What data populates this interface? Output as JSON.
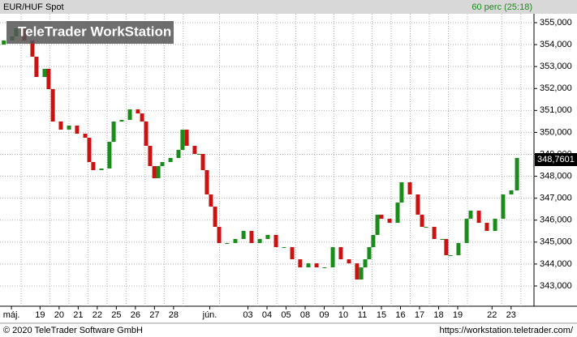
{
  "chart_data": {
    "type": "candlestick",
    "title": "EUR/HUF Spot",
    "interval": "60 perc (25:18)",
    "watermark": "TeleTrader WorkStation",
    "last_price": {
      "value": 348.7601,
      "label": "348,7601"
    },
    "footer_left": "© 2020 TeleTrader Software GmbH",
    "footer_right": "https://workstation.teletrader.com/",
    "up_color": "#1a8c1a",
    "down_color": "#cc1111",
    "grid": true,
    "xlim": [
      0,
      28
    ],
    "ylim": [
      342.077,
      355.406
    ],
    "yticks": [
      {
        "value": 343,
        "label": "343,000"
      },
      {
        "value": 344,
        "label": "344,000"
      },
      {
        "value": 345,
        "label": "345,000"
      },
      {
        "value": 346,
        "label": "346,000"
      },
      {
        "value": 347,
        "label": "347,000"
      },
      {
        "value": 348,
        "label": "348,000"
      },
      {
        "value": 349,
        "label": "349,000"
      },
      {
        "value": 350,
        "label": "350,000"
      },
      {
        "value": 351,
        "label": "351,000"
      },
      {
        "value": 352,
        "label": "352,000"
      },
      {
        "value": 353,
        "label": "353,000"
      },
      {
        "value": 354,
        "label": "354,000"
      },
      {
        "value": 355,
        "label": "355,000"
      }
    ],
    "xticks": [
      {
        "value": 0.6,
        "label": "máj."
      },
      {
        "value": 2.1,
        "label": "19"
      },
      {
        "value": 3.1,
        "label": "20"
      },
      {
        "value": 4.1,
        "label": "21"
      },
      {
        "value": 5.1,
        "label": "22"
      },
      {
        "value": 6.1,
        "label": "25"
      },
      {
        "value": 7.1,
        "label": "26"
      },
      {
        "value": 8.1,
        "label": "27"
      },
      {
        "value": 9.1,
        "label": "28"
      },
      {
        "value": 11.0,
        "label": "jún."
      },
      {
        "value": 13.0,
        "label": "03"
      },
      {
        "value": 14.0,
        "label": "04"
      },
      {
        "value": 15.0,
        "label": "05"
      },
      {
        "value": 16.0,
        "label": "08"
      },
      {
        "value": 17.0,
        "label": "09"
      },
      {
        "value": 18.0,
        "label": "10"
      },
      {
        "value": 19.0,
        "label": "11"
      },
      {
        "value": 20.0,
        "label": "15"
      },
      {
        "value": 21.0,
        "label": "16"
      },
      {
        "value": 22.0,
        "label": "17"
      },
      {
        "value": 23.0,
        "label": "18"
      },
      {
        "value": 24.0,
        "label": "19"
      },
      {
        "value": 25.8,
        "label": "22"
      },
      {
        "value": 26.8,
        "label": "23"
      }
    ],
    "x": [
      0.2,
      0.64,
      0.85,
      1.28,
      1.7,
      1.91,
      2.34,
      2.55,
      2.77,
      3.19,
      3.62,
      4.04,
      4.47,
      4.68,
      4.89,
      5.32,
      5.74,
      5.96,
      6.38,
      6.81,
      7.23,
      7.45,
      7.66,
      7.87,
      8.09,
      8.3,
      8.51,
      8.94,
      9.36,
      9.57,
      9.79,
      10.21,
      10.43,
      10.64,
      10.85,
      11.06,
      11.28,
      11.49,
      11.91,
      12.34,
      12.77,
      13.19,
      13.62,
      14.04,
      14.47,
      14.89,
      15.32,
      15.74,
      16.17,
      16.6,
      17.02,
      17.45,
      17.87,
      18.3,
      18.72,
      18.94,
      19.15,
      19.36,
      19.57,
      19.79,
      20.0,
      20.43,
      20.85,
      21.06,
      21.49,
      21.91,
      22.13,
      22.34,
      22.77,
      23.19,
      23.4,
      23.62,
      24.04,
      24.47,
      24.68,
      25.11,
      25.53,
      25.96,
      26.38,
      26.81,
      27.11
    ],
    "open": [
      354.0,
      354.188,
      354.372,
      354.741,
      354.188,
      353.449,
      352.526,
      352.895,
      351.972,
      350.495,
      350.125,
      350.31,
      349.941,
      349.756,
      348.648,
      348.279,
      348.353,
      349.571,
      350.495,
      350.568,
      351.048,
      350.864,
      350.495,
      349.387,
      348.463,
      347.91,
      348.463,
      348.648,
      348.833,
      349.202,
      350.125,
      349.387,
      349.017,
      349.017,
      348.279,
      347.171,
      346.617,
      345.694,
      344.955,
      344.955,
      345.14,
      345.509,
      344.955,
      345.14,
      345.325,
      344.77,
      344.77,
      344.216,
      343.847,
      344.032,
      343.847,
      343.847,
      344.77,
      344.216,
      344.032,
      343.293,
      343.847,
      344.216,
      344.77,
      345.325,
      346.248,
      346.063,
      345.879,
      346.802,
      347.725,
      347.171,
      346.248,
      345.694,
      345.694,
      345.14,
      345.14,
      344.401,
      344.401,
      344.955,
      346.063,
      346.432,
      345.879,
      345.509,
      346.063,
      347.171,
      347.356
    ],
    "close": [
      354.188,
      354.372,
      354.741,
      354.188,
      353.449,
      352.526,
      352.895,
      351.972,
      350.495,
      350.125,
      350.31,
      349.941,
      349.756,
      348.648,
      348.279,
      348.353,
      349.571,
      350.495,
      350.568,
      351.048,
      350.864,
      350.495,
      349.387,
      348.463,
      347.91,
      348.463,
      348.648,
      348.833,
      349.202,
      350.125,
      349.387,
      349.017,
      349.017,
      348.279,
      347.171,
      346.617,
      345.694,
      344.955,
      344.955,
      345.14,
      345.509,
      344.955,
      345.14,
      345.325,
      344.77,
      344.77,
      344.216,
      343.847,
      344.032,
      343.847,
      343.847,
      344.77,
      344.216,
      344.032,
      343.293,
      343.847,
      344.216,
      344.77,
      345.325,
      346.248,
      346.063,
      345.879,
      346.802,
      347.725,
      347.171,
      346.248,
      345.694,
      345.694,
      345.14,
      345.14,
      344.401,
      344.401,
      344.955,
      346.063,
      346.432,
      345.879,
      345.509,
      346.063,
      347.171,
      347.356,
      348.833
    ]
  }
}
